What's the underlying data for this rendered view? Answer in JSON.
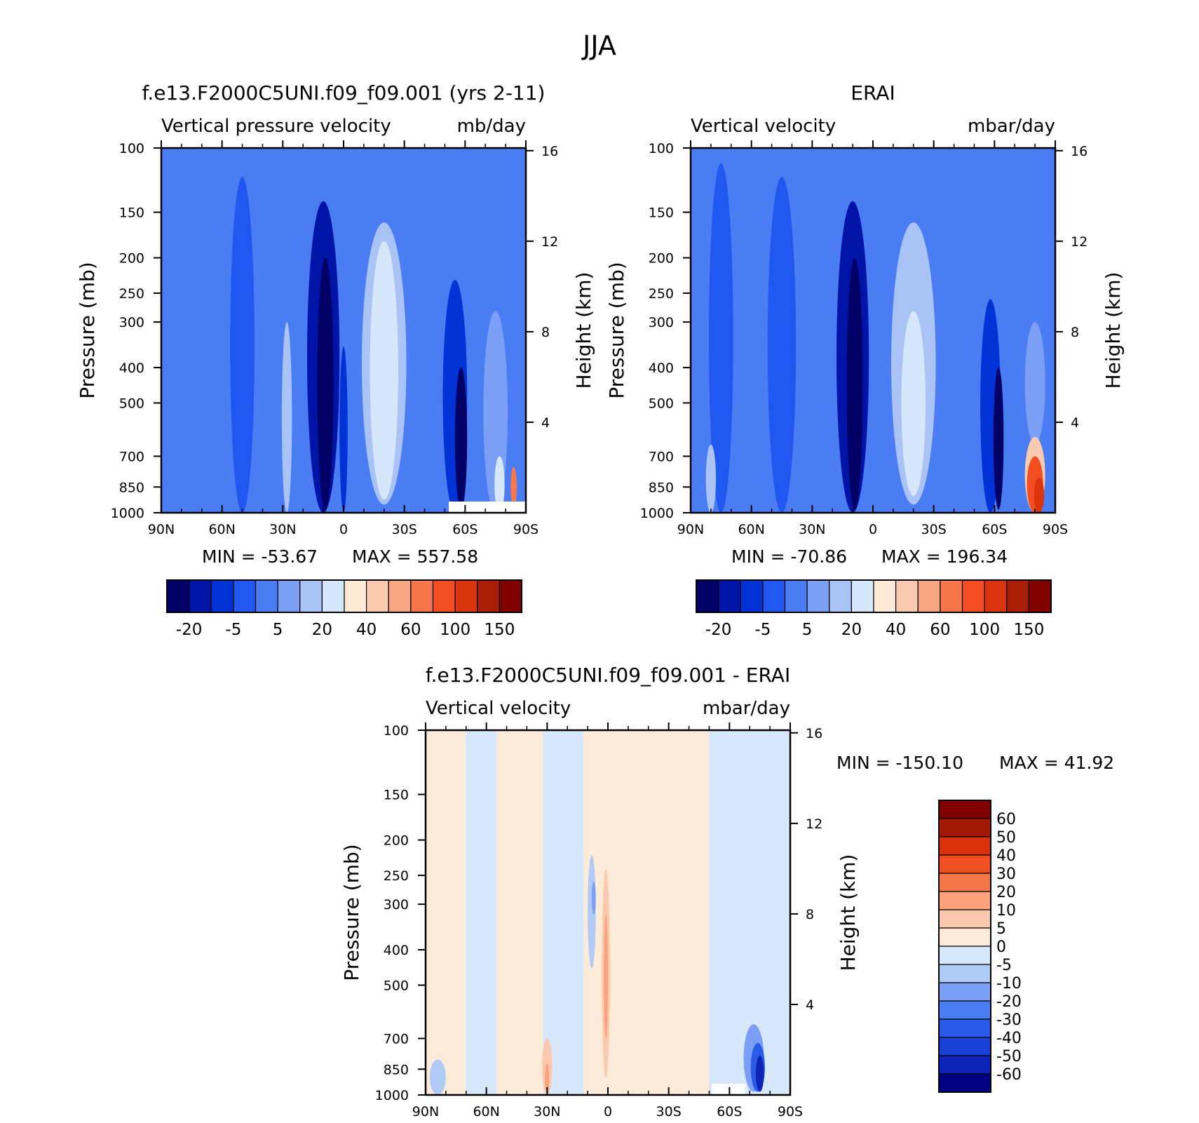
{
  "figure": {
    "title": "JJA"
  },
  "colors": {
    "abs_levels": [
      "#000066",
      "#0015a8",
      "#0032d6",
      "#1f57f0",
      "#4a7cf4",
      "#7a9ff5",
      "#a9c3f7",
      "#d6e6fb",
      "#fde9d6",
      "#fbcbb1",
      "#f9a683",
      "#f7784a",
      "#f24e22",
      "#db3510",
      "#a81e06",
      "#800000"
    ],
    "diff_levels": [
      "#000080",
      "#0d24b8",
      "#1a40d6",
      "#2b5ae8",
      "#4a7cf2",
      "#7a9ff5",
      "#b1cbf7",
      "#d8e8fc",
      "#fdebd9",
      "#fbc9ad",
      "#f9a27c",
      "#f5784a",
      "#f04f22",
      "#d9320c",
      "#a31a05",
      "#800000"
    ]
  },
  "chart_data": [
    {
      "type": "heatmap",
      "title": "f.e13.F2000C5UNI.f09_f09.001 (yrs 2-11)",
      "variable": "Vertical pressure velocity",
      "units": "mb/day",
      "ylabel": "Pressure (mb)",
      "y2label": "Height (km)",
      "x_ticks": [
        "90N",
        "60N",
        "30N",
        "0",
        "30S",
        "60S",
        "90S"
      ],
      "y_ticks": [
        "100",
        "150",
        "200",
        "250",
        "300",
        "400",
        "500",
        "700",
        "850",
        "1000"
      ],
      "y_values": [
        100,
        150,
        200,
        250,
        300,
        400,
        500,
        700,
        850,
        1000
      ],
      "y2_ticks": [
        "16",
        "12",
        "8",
        "4"
      ],
      "y2_values": [
        16,
        12,
        8,
        4
      ],
      "min_label": "MIN = -53.67",
      "max_label": "MAX = 557.58",
      "colorbar_labels": [
        "-20",
        "-5",
        "5",
        "20",
        "40",
        "60",
        "100",
        "150"
      ],
      "features": [
        {
          "lat": 75,
          "pmin": 100,
          "pmax": 1000,
          "level": 4,
          "width": 12
        },
        {
          "lat": 50,
          "pmin": 120,
          "pmax": 1000,
          "level": 3,
          "width": 12
        },
        {
          "lat": 10,
          "pmin": 140,
          "pmax": 1000,
          "level": 1,
          "width": 16
        },
        {
          "lat": 9,
          "pmin": 200,
          "pmax": 980,
          "level": 0,
          "width": 8
        },
        {
          "lat": 28,
          "pmin": 300,
          "pmax": 1000,
          "level": 6,
          "width": 5
        },
        {
          "lat": 0,
          "pmin": 350,
          "pmax": 1000,
          "level": 2,
          "width": 4
        },
        {
          "lat": -20,
          "pmin": 160,
          "pmax": 950,
          "level": 6,
          "width": 22
        },
        {
          "lat": -20,
          "pmin": 180,
          "pmax": 920,
          "level": 7,
          "width": 14
        },
        {
          "lat": -55,
          "pmin": 230,
          "pmax": 1000,
          "level": 2,
          "width": 12
        },
        {
          "lat": -58,
          "pmin": 400,
          "pmax": 980,
          "level": 0,
          "width": 6
        },
        {
          "lat": -75,
          "pmin": 280,
          "pmax": 1000,
          "level": 5,
          "width": 12
        },
        {
          "lat": -77,
          "pmin": 700,
          "pmax": 1000,
          "level": 7,
          "width": 5
        },
        {
          "lat": -84,
          "pmin": 750,
          "pmax": 960,
          "level": 11,
          "width": 3
        }
      ]
    },
    {
      "type": "heatmap",
      "title": "ERAI",
      "variable": "Vertical velocity",
      "units": "mbar/day",
      "ylabel": "Pressure (mb)",
      "y2label": "Height (km)",
      "x_ticks": [
        "90N",
        "60N",
        "30N",
        "0",
        "30S",
        "60S",
        "90S"
      ],
      "y_ticks": [
        "100",
        "150",
        "200",
        "250",
        "300",
        "400",
        "500",
        "700",
        "850",
        "1000"
      ],
      "y_values": [
        100,
        150,
        200,
        250,
        300,
        400,
        500,
        700,
        850,
        1000
      ],
      "y2_ticks": [
        "16",
        "12",
        "8",
        "4"
      ],
      "y2_values": [
        16,
        12,
        8,
        4
      ],
      "min_label": "MIN = -70.86",
      "max_label": "MAX = 196.34",
      "colorbar_labels": [
        "-20",
        "-5",
        "5",
        "20",
        "40",
        "60",
        "100",
        "150"
      ],
      "features": [
        {
          "lat": 75,
          "pmin": 110,
          "pmax": 1000,
          "level": 3,
          "width": 12
        },
        {
          "lat": 45,
          "pmin": 120,
          "pmax": 1000,
          "level": 3,
          "width": 14
        },
        {
          "lat": 10,
          "pmin": 140,
          "pmax": 1000,
          "level": 1,
          "width": 16
        },
        {
          "lat": 9,
          "pmin": 200,
          "pmax": 980,
          "level": 0,
          "width": 8
        },
        {
          "lat": 80,
          "pmin": 650,
          "pmax": 1000,
          "level": 6,
          "width": 5
        },
        {
          "lat": -20,
          "pmin": 160,
          "pmax": 950,
          "level": 6,
          "width": 22
        },
        {
          "lat": -20,
          "pmin": 280,
          "pmax": 900,
          "level": 7,
          "width": 12
        },
        {
          "lat": -58,
          "pmin": 260,
          "pmax": 1000,
          "level": 2,
          "width": 10
        },
        {
          "lat": -62,
          "pmin": 400,
          "pmax": 980,
          "level": 0,
          "width": 5
        },
        {
          "lat": -80,
          "pmin": 300,
          "pmax": 650,
          "level": 5,
          "width": 10
        },
        {
          "lat": -80,
          "pmin": 620,
          "pmax": 1000,
          "level": 9,
          "width": 10
        },
        {
          "lat": -80,
          "pmin": 700,
          "pmax": 1000,
          "level": 12,
          "width": 8
        },
        {
          "lat": -82,
          "pmin": 800,
          "pmax": 1000,
          "level": 13,
          "width": 5
        }
      ]
    },
    {
      "type": "heatmap",
      "title": "f.e13.F2000C5UNI.f09_f09.001 - ERAI",
      "variable": "Vertical velocity",
      "units": "mbar/day",
      "ylabel": "Pressure (mb)",
      "y2label": "Height (km)",
      "x_ticks": [
        "90N",
        "60N",
        "30N",
        "0",
        "30S",
        "60S",
        "90S"
      ],
      "y_ticks": [
        "100",
        "150",
        "200",
        "250",
        "300",
        "400",
        "500",
        "700",
        "850",
        "1000"
      ],
      "y_values": [
        100,
        150,
        200,
        250,
        300,
        400,
        500,
        700,
        850,
        1000
      ],
      "y2_ticks": [
        "16",
        "12",
        "8",
        "4"
      ],
      "y2_values": [
        16,
        12,
        8,
        4
      ],
      "min_label": "MIN = -150.10",
      "max_label": "MAX =  41.92",
      "colorbar_labels": [
        "60",
        "50",
        "40",
        "30",
        "20",
        "10",
        "5",
        "0",
        "-5",
        "-10",
        "-20",
        "-30",
        "-40",
        "-50",
        "-60"
      ],
      "bands": [
        {
          "lat1": 90,
          "lat2": 70,
          "level": 8
        },
        {
          "lat1": 70,
          "lat2": 55,
          "level": 7
        },
        {
          "lat1": 55,
          "lat2": 32,
          "level": 8
        },
        {
          "lat1": 32,
          "lat2": 12,
          "level": 7
        },
        {
          "lat1": 12,
          "lat2": -12,
          "level": 8
        },
        {
          "lat1": -12,
          "lat2": -50,
          "level": 8
        },
        {
          "lat1": -50,
          "lat2": -65,
          "level": 7
        },
        {
          "lat1": -65,
          "lat2": -90,
          "level": 7
        }
      ],
      "features": [
        {
          "lat": 8,
          "pmin": 220,
          "pmax": 450,
          "level": 6,
          "width": 4
        },
        {
          "lat": 7,
          "pmin": 260,
          "pmax": 320,
          "level": 5,
          "width": 2
        },
        {
          "lat": 1,
          "pmin": 240,
          "pmax": 900,
          "level": 9,
          "width": 4
        },
        {
          "lat": 1,
          "pmin": 320,
          "pmax": 700,
          "level": 10,
          "width": 2
        },
        {
          "lat": 30,
          "pmin": 700,
          "pmax": 1000,
          "level": 9,
          "width": 5
        },
        {
          "lat": 30,
          "pmin": 820,
          "pmax": 1000,
          "level": 10,
          "width": 2
        },
        {
          "lat": 84,
          "pmin": 800,
          "pmax": 1000,
          "level": 6,
          "width": 8
        },
        {
          "lat": -72,
          "pmin": 640,
          "pmax": 980,
          "level": 5,
          "width": 10
        },
        {
          "lat": -74,
          "pmin": 720,
          "pmax": 980,
          "level": 3,
          "width": 7
        },
        {
          "lat": -75,
          "pmin": 780,
          "pmax": 980,
          "level": 1,
          "width": 4
        }
      ]
    }
  ]
}
